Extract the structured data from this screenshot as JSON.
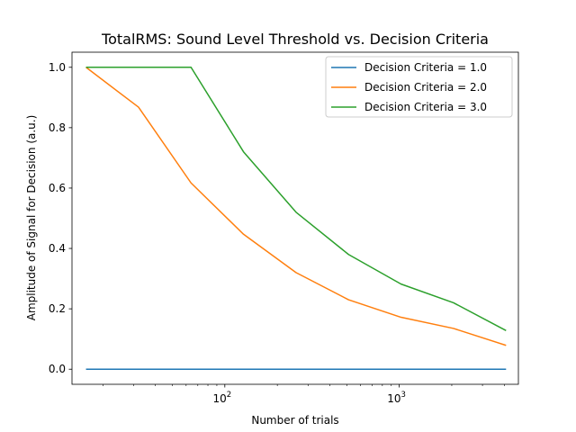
{
  "chart_data": {
    "type": "line",
    "title": "TotalRMS: Sound Level Threshold vs. Decision Criteria",
    "xlabel": "Number of trials",
    "ylabel": "Amplitude of Signal for Decision (a.u.)",
    "xscale": "log",
    "xlim": [
      13.3,
      4820
    ],
    "ylim": [
      -0.05,
      1.05
    ],
    "x_ticks": [
      {
        "value": 100,
        "base": "10",
        "exp": "2"
      },
      {
        "value": 1000,
        "base": "10",
        "exp": "3"
      }
    ],
    "y_ticks": [
      0.0,
      0.2,
      0.4,
      0.6,
      0.8,
      1.0
    ],
    "y_tick_labels": [
      "0.0",
      "0.2",
      "0.4",
      "0.6",
      "0.8",
      "1.0"
    ],
    "grid": false,
    "legend_position": "top-right",
    "x": [
      16,
      32,
      64,
      128,
      256,
      512,
      1024,
      2048,
      4096
    ],
    "series": [
      {
        "name": "Decision Criteria = 1.0",
        "color": "#1f77b4",
        "values": [
          0,
          0,
          0,
          0,
          0,
          0,
          0,
          0,
          0
        ]
      },
      {
        "name": "Decision Criteria = 2.0",
        "color": "#ff7f0e",
        "values": [
          1.0,
          0.868,
          0.617,
          0.447,
          0.32,
          0.23,
          0.172,
          0.135,
          0.079
        ]
      },
      {
        "name": "Decision Criteria = 3.0",
        "color": "#2ca02c",
        "values": [
          1.0,
          1.0,
          1.0,
          0.72,
          0.52,
          0.38,
          0.282,
          0.22,
          0.128
        ]
      }
    ]
  }
}
